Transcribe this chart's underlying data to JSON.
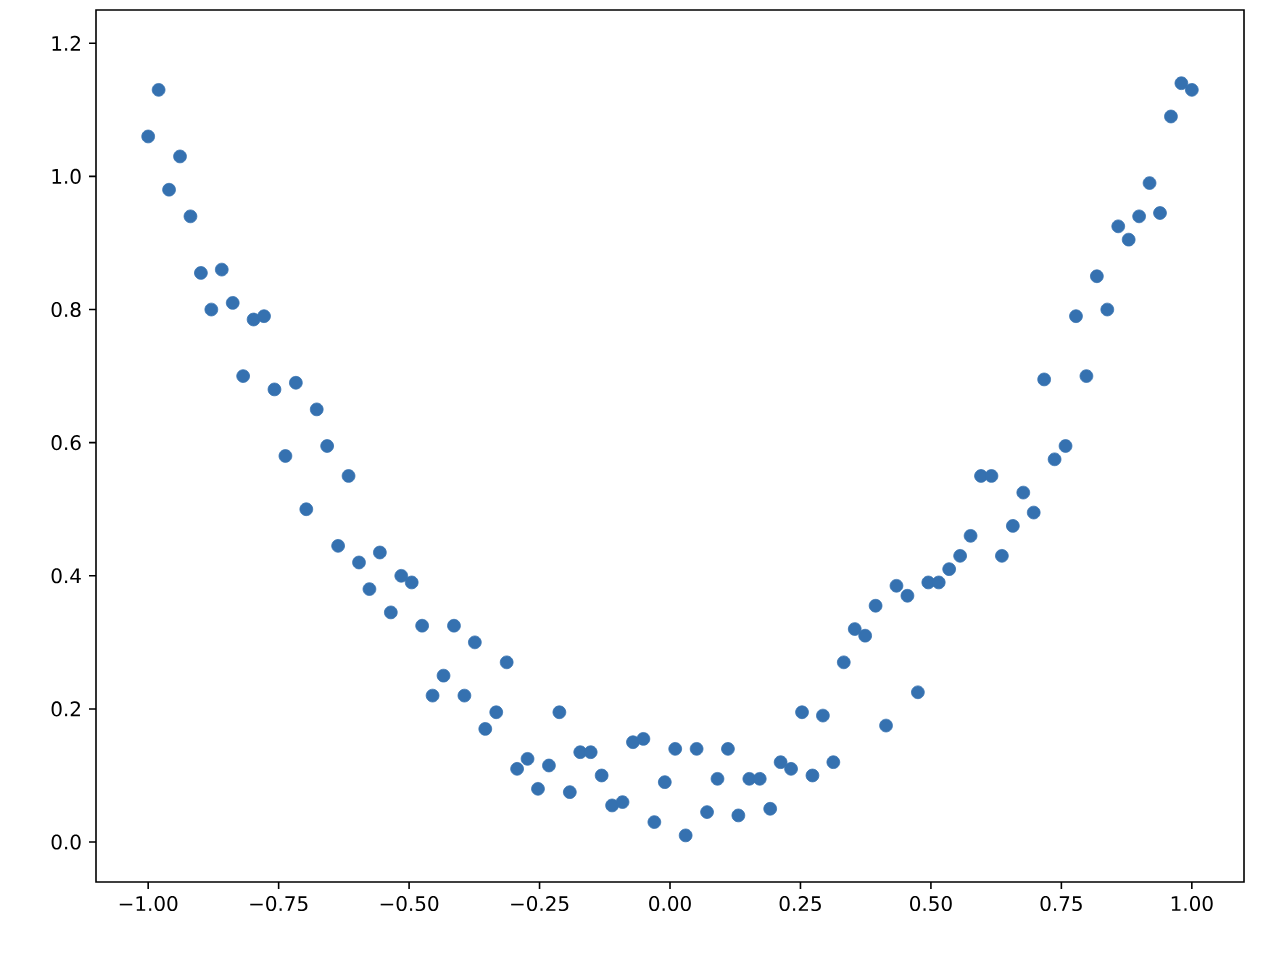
{
  "chart_data": {
    "type": "scatter",
    "marker": "circle",
    "grid": false,
    "xlim": [
      -1.1,
      1.1
    ],
    "ylim": [
      -0.06,
      1.25
    ],
    "xticks": [
      {
        "value": -1.0,
        "label": "−1.00"
      },
      {
        "value": -0.75,
        "label": "−0.75"
      },
      {
        "value": -0.5,
        "label": "−0.50"
      },
      {
        "value": -0.25,
        "label": "−0.25"
      },
      {
        "value": 0,
        "label": "0.00"
      },
      {
        "value": 0.25,
        "label": "0.25"
      },
      {
        "value": 0.5,
        "label": "0.50"
      },
      {
        "value": 0.75,
        "label": "0.75"
      },
      {
        "value": 1.0,
        "label": "1.00"
      }
    ],
    "yticks": [
      {
        "value": 0,
        "label": "0.0"
      },
      {
        "value": 0.2,
        "label": "0.2"
      },
      {
        "value": 0.4,
        "label": "0.4"
      },
      {
        "value": 0.6,
        "label": "0.6"
      },
      {
        "value": 0.8,
        "label": "0.8"
      },
      {
        "value": 1.0,
        "label": "1.0"
      },
      {
        "value": 1.2,
        "label": "1.2"
      }
    ],
    "series": [
      {
        "color": "#3571b0",
        "x": [
          -1.0,
          -0.98,
          -0.96,
          -0.939,
          -0.919,
          -0.899,
          -0.879,
          -0.859,
          -0.838,
          -0.818,
          -0.798,
          -0.778,
          -0.758,
          -0.737,
          -0.717,
          -0.697,
          -0.677,
          -0.657,
          -0.636,
          -0.616,
          -0.596,
          -0.576,
          -0.556,
          -0.535,
          -0.515,
          -0.495,
          -0.475,
          -0.455,
          -0.434,
          -0.414,
          -0.394,
          -0.374,
          -0.354,
          -0.333,
          -0.313,
          -0.293,
          -0.273,
          -0.253,
          -0.232,
          -0.212,
          -0.192,
          -0.172,
          -0.152,
          -0.131,
          -0.111,
          -0.091,
          -0.071,
          -0.051,
          -0.03,
          -0.01,
          0.01,
          0.03,
          0.051,
          0.071,
          0.091,
          0.111,
          0.131,
          0.152,
          0.172,
          0.192,
          0.212,
          0.232,
          0.253,
          0.273,
          0.293,
          0.313,
          0.333,
          0.354,
          0.374,
          0.394,
          0.414,
          0.434,
          0.455,
          0.475,
          0.495,
          0.515,
          0.535,
          0.556,
          0.576,
          0.596,
          0.616,
          0.636,
          0.657,
          0.677,
          0.697,
          0.717,
          0.737,
          0.758,
          0.778,
          0.798,
          0.818,
          0.838,
          0.859,
          0.879,
          0.899,
          0.919,
          0.939,
          0.96,
          0.98,
          1.0
        ],
        "values": [
          1.06,
          1.13,
          0.98,
          1.03,
          0.94,
          0.855,
          0.8,
          0.86,
          0.81,
          0.7,
          0.785,
          0.79,
          0.68,
          0.58,
          0.69,
          0.5,
          0.65,
          0.595,
          0.445,
          0.55,
          0.42,
          0.38,
          0.435,
          0.345,
          0.4,
          0.39,
          0.325,
          0.22,
          0.25,
          0.325,
          0.22,
          0.3,
          0.17,
          0.195,
          0.27,
          0.11,
          0.125,
          0.08,
          0.115,
          0.195,
          0.075,
          0.135,
          0.135,
          0.1,
          0.055,
          0.06,
          0.15,
          0.155,
          0.03,
          0.09,
          0.14,
          0.01,
          0.14,
          0.045,
          0.095,
          0.14,
          0.04,
          0.095,
          0.095,
          0.05,
          0.12,
          0.11,
          0.195,
          0.1,
          0.19,
          0.12,
          0.27,
          0.32,
          0.31,
          0.355,
          0.175,
          0.385,
          0.37,
          0.225,
          0.39,
          0.39,
          0.41,
          0.43,
          0.46,
          0.55,
          0.55,
          0.43,
          0.475,
          0.525,
          0.495,
          0.695,
          0.575,
          0.595,
          0.79,
          0.7,
          0.85,
          0.8,
          0.925,
          0.905,
          0.94,
          0.99,
          0.945,
          1.09,
          1.14,
          1.13
        ]
      }
    ]
  }
}
